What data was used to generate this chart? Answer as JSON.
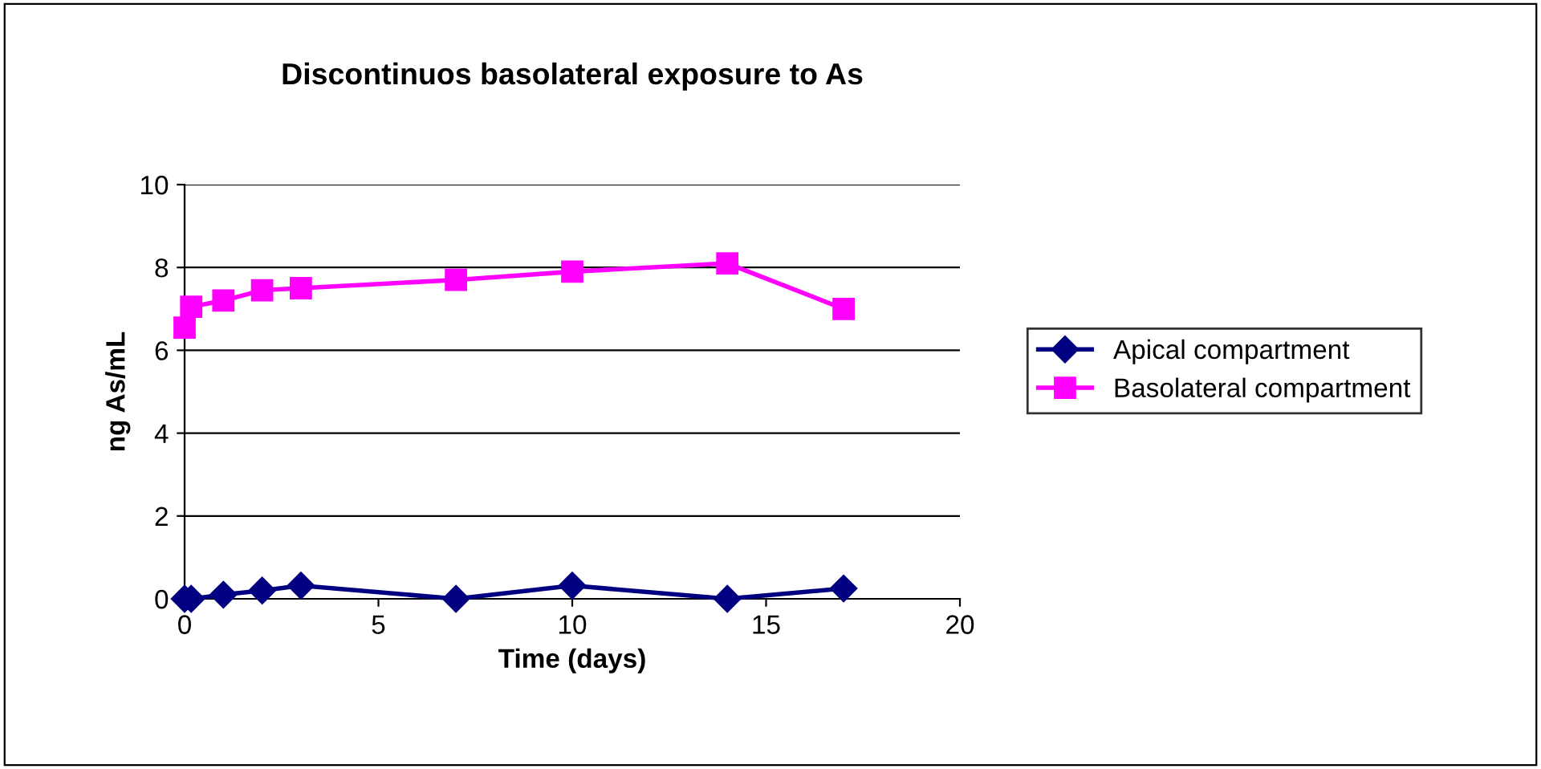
{
  "chart_data": {
    "type": "line",
    "title": "Discontinuos basolateral exposure to As",
    "xlabel": "Time (days)",
    "ylabel": "ng As/mL",
    "x": [
      0,
      0.17,
      1,
      2,
      3,
      7,
      10,
      14,
      17
    ],
    "series": [
      {
        "name": "Apical compartment",
        "color": "#000080",
        "marker": "diamond",
        "values": [
          0.0,
          0.0,
          0.1,
          0.2,
          0.32,
          0.0,
          0.32,
          0.0,
          0.25
        ]
      },
      {
        "name": "Basolateral compartment",
        "color": "#ff00ff",
        "marker": "square",
        "values": [
          6.55,
          7.05,
          7.2,
          7.45,
          7.5,
          7.7,
          7.9,
          8.1,
          7.0
        ]
      }
    ],
    "xlim": [
      0,
      20
    ],
    "xticks": [
      0,
      5,
      10,
      15,
      20
    ],
    "ylim": [
      0,
      10
    ],
    "yticks": [
      0,
      2,
      4,
      6,
      8,
      10
    ],
    "grid": "y",
    "legend": "right",
    "line_style": "solid"
  }
}
